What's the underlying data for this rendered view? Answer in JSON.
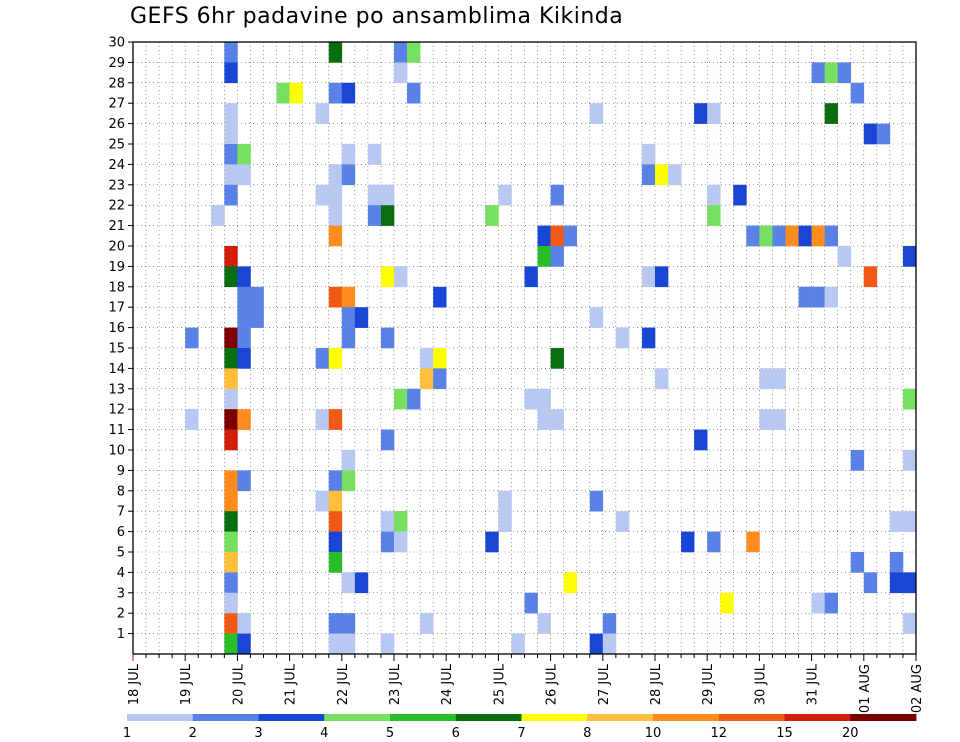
{
  "title": "GEFS 6hr padavine po ansamblima Kikinda",
  "chart_data": {
    "type": "heatmap",
    "title": "GEFS 6hr padavine po ansamblima Kikinda",
    "x_tick_labels": [
      "18 JUL",
      "19 JUL",
      "20 JUL",
      "21 JUL",
      "22 JUL",
      "23 JUL",
      "24 JUL",
      "25 JUL",
      "26 JUL",
      "27 JUL",
      "28 JUL",
      "29 JUL",
      "30 JUL",
      "31 JUL",
      "01 AUG",
      "02 AUG"
    ],
    "y_tick_labels": [
      "1",
      "2",
      "3",
      "4",
      "5",
      "6",
      "7",
      "8",
      "9",
      "10",
      "11",
      "12",
      "13",
      "14",
      "15",
      "16",
      "17",
      "18",
      "19",
      "20",
      "21",
      "22",
      "23",
      "24",
      "25",
      "26",
      "27",
      "28",
      "29",
      "30"
    ],
    "legend_labels": [
      "1",
      "2",
      "3",
      "4",
      "5",
      "6",
      "7",
      "8",
      "10",
      "12",
      "15",
      "20"
    ],
    "legend_colors": [
      "#b8c8f0",
      "#5a82e6",
      "#1a46d6",
      "#78e060",
      "#28be28",
      "#0a6e10",
      "#ffff00",
      "#ffbe3c",
      "#ff8c1e",
      "#f05a14",
      "#d21e0a",
      "#7a0000"
    ],
    "x_unit": "6h steps from 18 JUL 00Z",
    "y_unit": "ensemble member",
    "cells": [
      [
        8,
        30,
        1
      ],
      [
        16,
        30,
        5
      ],
      [
        21,
        30,
        1
      ],
      [
        22,
        30,
        3
      ],
      [
        8,
        29,
        2
      ],
      [
        21,
        29,
        0
      ],
      [
        53,
        29,
        1
      ],
      [
        54,
        29,
        3
      ],
      [
        55,
        29,
        1
      ],
      [
        12,
        28,
        3
      ],
      [
        13,
        28,
        6
      ],
      [
        16,
        28,
        1
      ],
      [
        17,
        28,
        2
      ],
      [
        22,
        28,
        1
      ],
      [
        56,
        28,
        1
      ],
      [
        8,
        27,
        0
      ],
      [
        15,
        27,
        0
      ],
      [
        36,
        27,
        0
      ],
      [
        44,
        27,
        2
      ],
      [
        45,
        27,
        0
      ],
      [
        54,
        27,
        5
      ],
      [
        8,
        26,
        0
      ],
      [
        57,
        26,
        2
      ],
      [
        58,
        26,
        1
      ],
      [
        8,
        25,
        1
      ],
      [
        9,
        25,
        3
      ],
      [
        17,
        25,
        0
      ],
      [
        19,
        25,
        0
      ],
      [
        40,
        25,
        0
      ],
      [
        8,
        24,
        0
      ],
      [
        9,
        24,
        0
      ],
      [
        16,
        24,
        0
      ],
      [
        17,
        24,
        1
      ],
      [
        40,
        24,
        1
      ],
      [
        41,
        24,
        6
      ],
      [
        42,
        24,
        0
      ],
      [
        8,
        23,
        1
      ],
      [
        15,
        23,
        0
      ],
      [
        16,
        23,
        0
      ],
      [
        19,
        23,
        0
      ],
      [
        20,
        23,
        0
      ],
      [
        29,
        23,
        0
      ],
      [
        33,
        23,
        1
      ],
      [
        45,
        23,
        0
      ],
      [
        47,
        23,
        2
      ],
      [
        7,
        22,
        0
      ],
      [
        16,
        22,
        0
      ],
      [
        19,
        22,
        1
      ],
      [
        20,
        22,
        5
      ],
      [
        28,
        22,
        3
      ],
      [
        45,
        22,
        3
      ],
      [
        16,
        21,
        8
      ],
      [
        32,
        21,
        2
      ],
      [
        33,
        21,
        9
      ],
      [
        34,
        21,
        1
      ],
      [
        48,
        21,
        1
      ],
      [
        49,
        21,
        3
      ],
      [
        50,
        21,
        1
      ],
      [
        51,
        21,
        8
      ],
      [
        52,
        21,
        2
      ],
      [
        53,
        21,
        8
      ],
      [
        54,
        21,
        1
      ],
      [
        8,
        20,
        10
      ],
      [
        32,
        20,
        4
      ],
      [
        33,
        20,
        1
      ],
      [
        55,
        20,
        0
      ],
      [
        60,
        20,
        2
      ],
      [
        8,
        19,
        5
      ],
      [
        9,
        19,
        2
      ],
      [
        20,
        19,
        6
      ],
      [
        21,
        19,
        0
      ],
      [
        31,
        19,
        2
      ],
      [
        40,
        19,
        0
      ],
      [
        41,
        19,
        2
      ],
      [
        57,
        19,
        9
      ],
      [
        9,
        18,
        1
      ],
      [
        10,
        18,
        1
      ],
      [
        16,
        18,
        9
      ],
      [
        17,
        18,
        8
      ],
      [
        24,
        18,
        2
      ],
      [
        52,
        18,
        1
      ],
      [
        53,
        18,
        1
      ],
      [
        54,
        18,
        0
      ],
      [
        9,
        17,
        1
      ],
      [
        10,
        17,
        1
      ],
      [
        17,
        17,
        1
      ],
      [
        18,
        17,
        2
      ],
      [
        36,
        17,
        0
      ],
      [
        5,
        16,
        1
      ],
      [
        8,
        16,
        11
      ],
      [
        9,
        16,
        1
      ],
      [
        17,
        16,
        1
      ],
      [
        20,
        16,
        1
      ],
      [
        38,
        16,
        0
      ],
      [
        40,
        16,
        2
      ],
      [
        8,
        15,
        5
      ],
      [
        9,
        15,
        2
      ],
      [
        15,
        15,
        1
      ],
      [
        16,
        15,
        6
      ],
      [
        23,
        15,
        0
      ],
      [
        24,
        15,
        6
      ],
      [
        33,
        15,
        5
      ],
      [
        8,
        14,
        7
      ],
      [
        23,
        14,
        7
      ],
      [
        24,
        14,
        1
      ],
      [
        41,
        14,
        0
      ],
      [
        49,
        14,
        0
      ],
      [
        50,
        14,
        0
      ],
      [
        8,
        13,
        0
      ],
      [
        21,
        13,
        3
      ],
      [
        22,
        13,
        1
      ],
      [
        31,
        13,
        0
      ],
      [
        32,
        13,
        0
      ],
      [
        60,
        13,
        3
      ],
      [
        5,
        12,
        0
      ],
      [
        8,
        12,
        11
      ],
      [
        9,
        12,
        8
      ],
      [
        15,
        12,
        0
      ],
      [
        16,
        12,
        9
      ],
      [
        32,
        12,
        0
      ],
      [
        33,
        12,
        0
      ],
      [
        49,
        12,
        0
      ],
      [
        50,
        12,
        0
      ],
      [
        8,
        11,
        10
      ],
      [
        20,
        11,
        1
      ],
      [
        44,
        11,
        2
      ],
      [
        17,
        10,
        0
      ],
      [
        56,
        10,
        1
      ],
      [
        60,
        10,
        0
      ],
      [
        8,
        9,
        8
      ],
      [
        9,
        9,
        1
      ],
      [
        16,
        9,
        1
      ],
      [
        17,
        9,
        3
      ],
      [
        8,
        8,
        8
      ],
      [
        15,
        8,
        0
      ],
      [
        16,
        8,
        7
      ],
      [
        29,
        8,
        0
      ],
      [
        36,
        8,
        1
      ],
      [
        8,
        7,
        5
      ],
      [
        16,
        7,
        9
      ],
      [
        20,
        7,
        0
      ],
      [
        21,
        7,
        3
      ],
      [
        29,
        7,
        0
      ],
      [
        38,
        7,
        0
      ],
      [
        59,
        7,
        0
      ],
      [
        60,
        7,
        0
      ],
      [
        8,
        6,
        3
      ],
      [
        16,
        6,
        2
      ],
      [
        20,
        6,
        1
      ],
      [
        21,
        6,
        0
      ],
      [
        28,
        6,
        2
      ],
      [
        43,
        6,
        2
      ],
      [
        45,
        6,
        1
      ],
      [
        48,
        6,
        8
      ],
      [
        8,
        5,
        7
      ],
      [
        16,
        5,
        4
      ],
      [
        56,
        5,
        1
      ],
      [
        59,
        5,
        1
      ],
      [
        8,
        4,
        1
      ],
      [
        17,
        4,
        0
      ],
      [
        18,
        4,
        2
      ],
      [
        34,
        4,
        6
      ],
      [
        57,
        4,
        1
      ],
      [
        59,
        4,
        2
      ],
      [
        60,
        4,
        2
      ],
      [
        8,
        3,
        0
      ],
      [
        31,
        3,
        1
      ],
      [
        46,
        3,
        6
      ],
      [
        53,
        3,
        0
      ],
      [
        54,
        3,
        1
      ],
      [
        8,
        2,
        9
      ],
      [
        9,
        2,
        0
      ],
      [
        16,
        2,
        1
      ],
      [
        17,
        2,
        1
      ],
      [
        23,
        2,
        0
      ],
      [
        32,
        2,
        0
      ],
      [
        37,
        2,
        1
      ],
      [
        60,
        2,
        0
      ],
      [
        8,
        1,
        4
      ],
      [
        9,
        1,
        2
      ],
      [
        16,
        1,
        0
      ],
      [
        17,
        1,
        0
      ],
      [
        20,
        1,
        0
      ],
      [
        30,
        1,
        0
      ],
      [
        36,
        1,
        2
      ],
      [
        37,
        1,
        0
      ]
    ]
  }
}
